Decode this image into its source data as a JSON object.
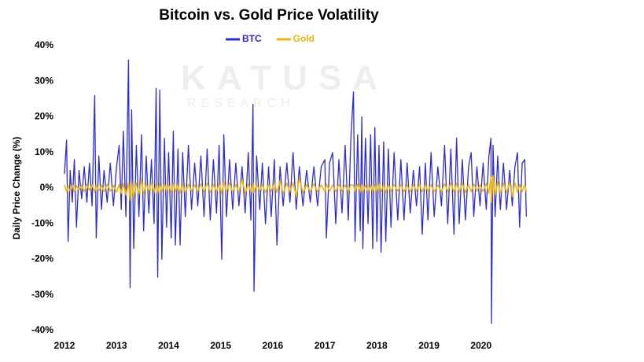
{
  "chart_data": {
    "type": "line",
    "title": "Bitcoin vs. Gold Price Volatility",
    "y_label": "Daily Price Change (%)",
    "watermark": [
      "KATUSA",
      "RESEARCH"
    ],
    "legend": "top",
    "xlim": [
      2012,
      2021
    ],
    "xticks": [
      2012,
      2013,
      2014,
      2015,
      2016,
      2017,
      2018,
      2019,
      2020
    ],
    "ylim": [
      -40,
      40
    ],
    "yticks": [
      {
        "value": -40,
        "label": "-40%"
      },
      {
        "value": -30,
        "label": "-30%"
      },
      {
        "value": -20,
        "label": "-20%"
      },
      {
        "value": -10,
        "label": "-10%"
      },
      {
        "value": 0,
        "label": "0%"
      },
      {
        "value": 10,
        "label": "10%"
      },
      {
        "value": 20,
        "label": "20%"
      },
      {
        "value": 30,
        "label": "30%"
      },
      {
        "value": 40,
        "label": "40%"
      }
    ],
    "x": [
      2012.0,
      2012.04,
      2012.07,
      2012.11,
      2012.15,
      2012.19,
      2012.23,
      2012.28,
      2012.33,
      2012.38,
      2012.43,
      2012.48,
      2012.53,
      2012.58,
      2012.61,
      2012.66,
      2012.71,
      2012.76,
      2012.82,
      2012.88,
      2012.94,
      2013.0,
      2013.05,
      2013.09,
      2013.13,
      2013.18,
      2013.23,
      2013.26,
      2013.29,
      2013.33,
      2013.38,
      2013.43,
      2013.48,
      2013.52,
      2013.57,
      2013.62,
      2013.67,
      2013.72,
      2013.76,
      2013.79,
      2013.83,
      2013.87,
      2013.92,
      2013.96,
      2014.0,
      2014.05,
      2014.09,
      2014.13,
      2014.18,
      2014.22,
      2014.27,
      2014.32,
      2014.38,
      2014.44,
      2014.5,
      2014.56,
      2014.62,
      2014.68,
      2014.74,
      2014.8,
      2014.86,
      2014.92,
      2014.97,
      2015.02,
      2015.06,
      2015.11,
      2015.17,
      2015.23,
      2015.29,
      2015.35,
      2015.41,
      2015.47,
      2015.53,
      2015.58,
      2015.62,
      2015.64,
      2015.69,
      2015.75,
      2015.8,
      2015.86,
      2015.92,
      2015.97,
      2016.03,
      2016.08,
      2016.14,
      2016.2,
      2016.27,
      2016.33,
      2016.39,
      2016.45,
      2016.51,
      2016.58,
      2016.65,
      2016.72,
      2016.79,
      2016.86,
      2016.93,
      2017.0,
      2017.03,
      2017.09,
      2017.15,
      2017.21,
      2017.27,
      2017.33,
      2017.39,
      2017.45,
      2017.5,
      2017.55,
      2017.58,
      2017.63,
      2017.68,
      2017.71,
      2017.73,
      2017.78,
      2017.83,
      2017.88,
      2017.92,
      2017.96,
      2018.0,
      2018.04,
      2018.08,
      2018.13,
      2018.17,
      2018.22,
      2018.27,
      2018.33,
      2018.4,
      2018.46,
      2018.52,
      2018.58,
      2018.64,
      2018.7,
      2018.76,
      2018.82,
      2018.87,
      2018.93,
      2018.98,
      2019.04,
      2019.1,
      2019.17,
      2019.24,
      2019.3,
      2019.36,
      2019.42,
      2019.48,
      2019.53,
      2019.58,
      2019.64,
      2019.7,
      2019.76,
      2019.81,
      2019.86,
      2019.92,
      2019.98,
      2020.04,
      2020.1,
      2020.15,
      2020.19,
      2020.2,
      2020.23,
      2020.27,
      2020.32,
      2020.37,
      2020.43,
      2020.49,
      2020.55,
      2020.6,
      2020.65,
      2020.7,
      2020.74,
      2020.79,
      2020.84,
      2020.87
    ],
    "series": [
      {
        "name": "BTC",
        "color": "#2b2bd9",
        "values": [
          4,
          13.5,
          -15,
          5,
          -4,
          8,
          -11,
          5,
          -3,
          6,
          -4,
          7,
          -5,
          26,
          -14,
          9,
          -6,
          5,
          -4,
          7,
          -5,
          6,
          12,
          -6,
          16,
          -8,
          36,
          -28,
          22,
          -17,
          12,
          -8,
          15,
          -12,
          9,
          -7,
          8,
          -10,
          28,
          -25,
          27.5,
          -20,
          14,
          -11,
          10,
          -14,
          16,
          -16,
          11,
          -16,
          10,
          -8,
          12,
          -6,
          7,
          -5,
          9,
          -8,
          11,
          -9,
          8,
          -7,
          12,
          -20,
          15,
          -8,
          8,
          -6,
          7,
          -5,
          6,
          -7,
          10,
          -9,
          23.5,
          -29,
          9,
          -6,
          7,
          -10,
          6,
          -8,
          8,
          -16,
          6,
          -5,
          7,
          -4,
          10,
          -6,
          6,
          -5,
          5,
          -4,
          6,
          -5,
          6,
          8,
          -14,
          7,
          10,
          -10,
          8,
          -7,
          12,
          -9,
          14,
          27,
          -15,
          15,
          -12,
          20,
          -17,
          14,
          -10,
          15,
          -17,
          17,
          -15,
          12,
          -18,
          13,
          -15,
          11,
          -11,
          10,
          -9,
          8,
          -9,
          7,
          -7,
          5,
          -5,
          6,
          -13,
          7,
          -9,
          10,
          -8,
          6,
          -5,
          12,
          -10,
          11,
          -13,
          14,
          -10,
          8,
          -9,
          6,
          10,
          -8,
          6,
          -5,
          7,
          -6,
          9,
          14,
          -38,
          12,
          -8,
          9,
          -6,
          7,
          -6,
          5,
          -5,
          6,
          10,
          -11,
          7,
          8,
          -8
        ]
      },
      {
        "name": "Gold",
        "color": "#f5b400",
        "values": [
          1,
          -1,
          0.5,
          -0.8,
          1.2,
          -1,
          0.6,
          -0.5,
          0.8,
          -1,
          1,
          -0.6,
          0.9,
          -1.2,
          1,
          -0.7,
          0.8,
          -1,
          1.1,
          -0.9,
          0.7,
          -1.1,
          1,
          -1.5,
          1.3,
          -2,
          1.5,
          -3.5,
          2,
          -2.5,
          1.4,
          -1.8,
          2.5,
          -1.5,
          1.3,
          -1,
          1.5,
          -1.2,
          1,
          -1.5,
          1.2,
          -1,
          1.3,
          -1,
          1,
          -1.2,
          1.5,
          -1,
          1.2,
          -1.4,
          1,
          -1.3,
          1.1,
          -0.8,
          0.9,
          -1,
          1.2,
          -1,
          1.5,
          -1.2,
          1,
          -1.1,
          1.3,
          -1.5,
          1.8,
          -1,
          1.4,
          -1.2,
          1,
          -1,
          2.5,
          -1.5,
          1.2,
          -1,
          1.5,
          -1.3,
          1,
          -0.8,
          1,
          -1.2,
          1,
          -0.9,
          1.5,
          -1.3,
          2,
          -1.5,
          1.4,
          -1,
          1.6,
          -2.5,
          2.8,
          -1.4,
          1,
          -1,
          1.2,
          -1,
          0.9,
          -1,
          1.2,
          -0.9,
          0.8,
          -1,
          1,
          -0.8,
          0.9,
          -1,
          1,
          0.8,
          -1,
          1.1,
          -0.9,
          1,
          -1.1,
          0.8,
          -1,
          1,
          -1.2,
          1,
          -1,
          1.2,
          -1,
          1,
          -1.2,
          1,
          -0.9,
          1,
          -0.8,
          0.9,
          -1,
          0.8,
          -1,
          0.9,
          -0.8,
          1,
          -1.1,
          1,
          -0.9,
          1,
          -1,
          0.8,
          -1,
          1.2,
          -1,
          1.5,
          -1.2,
          1.3,
          -1.1,
          1.4,
          -1.2,
          1,
          -1,
          1.1,
          -0.8,
          0.9,
          -1,
          1.3,
          -1.5,
          3,
          -4,
          3.5,
          -2,
          1.8,
          -1.5,
          1.4,
          -1.2,
          1.6,
          -2.5,
          1.5,
          -1.2,
          1,
          -1,
          1,
          -1.2
        ]
      }
    ]
  }
}
